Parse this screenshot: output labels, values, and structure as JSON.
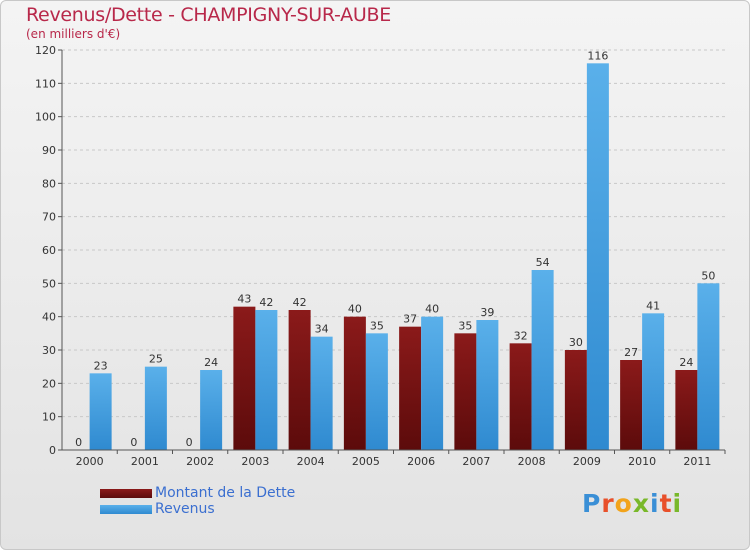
{
  "header": {
    "title": "Revenus/Dette - CHAMPIGNY-SUR-AUBE",
    "subtitle": "(en milliers d'€)"
  },
  "legend": {
    "dette_label": "Montant de la Dette",
    "revenus_label": "Revenus"
  },
  "logo": {
    "text": "Proxiti",
    "colors": [
      "#3a8fd6",
      "#e8502a",
      "#f2a31b",
      "#79b82a",
      "#3a8fd6",
      "#e8502a",
      "#79b82a"
    ]
  },
  "colors": {
    "dette_top": "#8b1a1a",
    "dette_bottom": "#5c0b0b",
    "revenus_top": "#5ab0ea",
    "revenus_bottom": "#2f8ad0",
    "grid": "#c8c8c8",
    "axis": "#555555",
    "label": "#333333"
  },
  "chart_data": {
    "type": "bar",
    "title": "Revenus/Dette - CHAMPIGNY-SUR-AUBE",
    "ylabel": "(en milliers d'€)",
    "xlabel": "",
    "ylim": [
      0,
      120
    ],
    "yticks": [
      0,
      10,
      20,
      30,
      40,
      50,
      60,
      70,
      80,
      90,
      100,
      110,
      120
    ],
    "grid": true,
    "legend_position": "bottom-left",
    "categories": [
      "2000",
      "2001",
      "2002",
      "2003",
      "2004",
      "2005",
      "2006",
      "2007",
      "2008",
      "2009",
      "2010",
      "2011"
    ],
    "series": [
      {
        "name": "Montant de la Dette",
        "values": [
          0,
          0,
          0,
          43,
          42,
          40,
          37,
          35,
          32,
          30,
          27,
          24
        ]
      },
      {
        "name": "Revenus",
        "values": [
          23,
          25,
          24,
          42,
          34,
          35,
          40,
          39,
          54,
          116,
          41,
          50
        ]
      }
    ]
  }
}
